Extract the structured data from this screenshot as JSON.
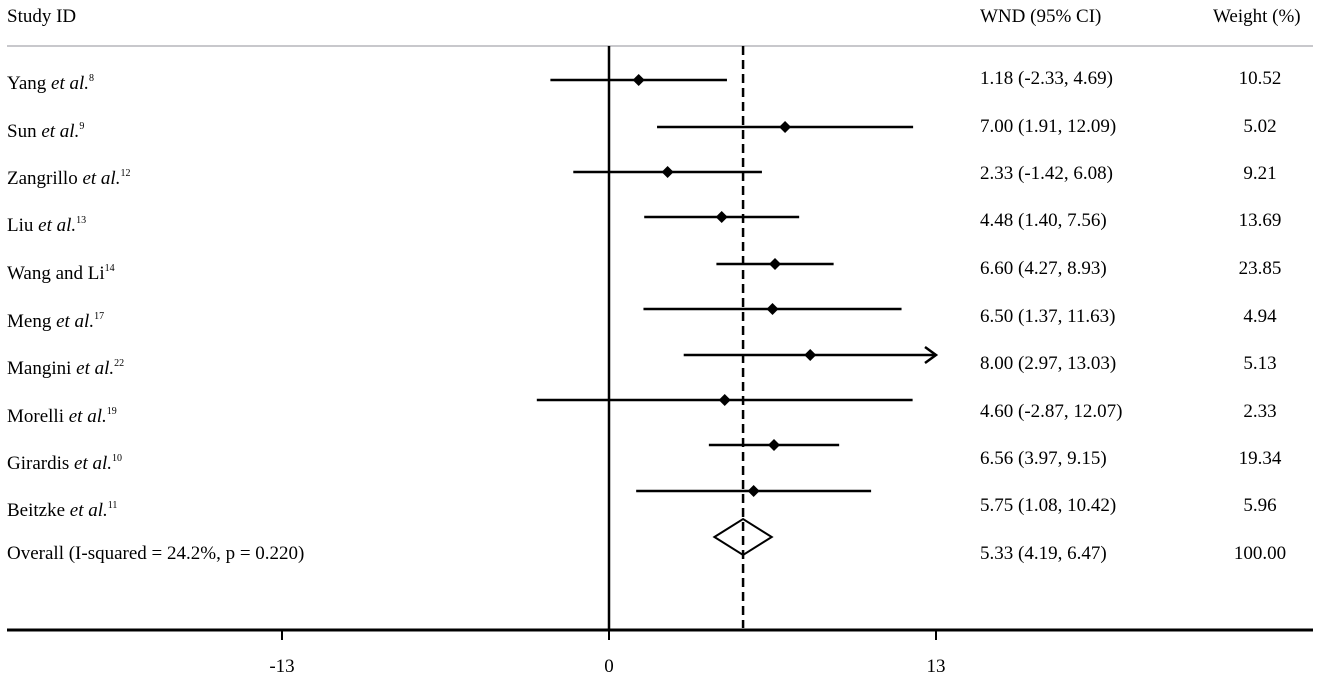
{
  "header": {
    "study_id": "Study ID",
    "wnd": "WND (95% CI)",
    "weight": "Weight (%)"
  },
  "rows": [
    {
      "name": "Yang",
      "etal": "et al.",
      "ref": "8",
      "wnd_text": "1.18 (-2.33, 4.69)",
      "weight": "10.52"
    },
    {
      "name": "Sun",
      "etal": "et al.",
      "ref": "9",
      "wnd_text": "7.00 (1.91, 12.09)",
      "weight": "5.02"
    },
    {
      "name": "Zangrillo",
      "etal": "et al.",
      "ref": "12",
      "wnd_text": "2.33 (-1.42, 6.08)",
      "weight": "9.21"
    },
    {
      "name": "Liu",
      "etal": "et al.",
      "ref": "13",
      "wnd_text": "4.48 (1.40, 7.56)",
      "weight": "13.69"
    },
    {
      "name": "Wang and Li",
      "etal": "",
      "ref": "14",
      "wnd_text": "6.60 (4.27, 8.93)",
      "weight": "23.85"
    },
    {
      "name": "Meng",
      "etal": "et al.",
      "ref": "17",
      "wnd_text": "6.50 (1.37, 11.63)",
      "weight": "4.94"
    },
    {
      "name": "Mangini",
      "etal": "et al.",
      "ref": "22",
      "wnd_text": "8.00 (2.97, 13.03)",
      "weight": "5.13"
    },
    {
      "name": "Morelli",
      "etal": "et al.",
      "ref": "19",
      "wnd_text": "4.60 (-2.87, 12.07)",
      "weight": "2.33"
    },
    {
      "name": "Girardis",
      "etal": "et al.",
      "ref": "10",
      "wnd_text": "6.56 (3.97, 9.15)",
      "weight": "19.34"
    },
    {
      "name": "Beitzke",
      "etal": "et al.",
      "ref": "11",
      "wnd_text": "5.75 (1.08, 10.42)",
      "weight": "5.96"
    }
  ],
  "overall": {
    "label": "Overall (I-squared = 24.2%, p = 0.220)",
    "wnd_text": "5.33 (4.19, 6.47)",
    "weight": "100.00"
  },
  "axis": {
    "ticks": [
      "-13",
      "0",
      "13"
    ]
  },
  "chart_data": {
    "type": "forest",
    "title": "",
    "xlabel": "",
    "ylabel": "",
    "columns": [
      "Study ID",
      "WND (95% CI)",
      "Weight (%)"
    ],
    "categories": [
      "Yang et al.",
      "Sun et al.",
      "Zangrillo et al.",
      "Liu et al.",
      "Wang and Li",
      "Meng et al.",
      "Mangini et al.",
      "Morelli et al.",
      "Girardis et al.",
      "Beitzke et al.",
      "Overall (I-squared = 24.2%, p = 0.220)"
    ],
    "estimate": [
      1.18,
      7.0,
      2.33,
      4.48,
      6.6,
      6.5,
      8.0,
      4.6,
      6.56,
      5.75,
      5.33
    ],
    "ci_lower": [
      -2.33,
      1.91,
      -1.42,
      1.4,
      4.27,
      1.37,
      2.97,
      -2.87,
      3.97,
      1.08,
      4.19
    ],
    "ci_upper": [
      4.69,
      12.09,
      6.08,
      7.56,
      8.93,
      11.63,
      13.03,
      12.07,
      9.15,
      10.42,
      6.47
    ],
    "weights": [
      10.52,
      5.02,
      9.21,
      13.69,
      23.85,
      4.94,
      5.13,
      2.33,
      19.34,
      5.96,
      100.0
    ],
    "pooled_estimate": 5.33,
    "heterogeneity": {
      "i_squared": "24.2%",
      "p": 0.22
    },
    "xticks": [
      -13,
      0,
      13
    ],
    "xlim": [
      -24,
      28
    ],
    "reference_line": 0,
    "pooled_line_dashed": 5.33,
    "truncated_arrow_rows": [
      "Mangini et al."
    ]
  }
}
